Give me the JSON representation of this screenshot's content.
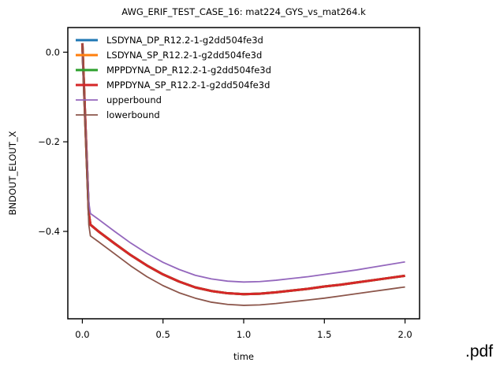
{
  "pdf_label": ".pdf",
  "chart_data": {
    "type": "line",
    "title": "AWG_ERIF_TEST_CASE_16: mat224_GYS_vs_mat264.k",
    "xlabel": "time",
    "ylabel": "BNDOUT_ELOUT_X",
    "xlim": [
      -0.09,
      2.09
    ],
    "ylim": [
      -0.595,
      0.055
    ],
    "xticks": [
      0.0,
      0.5,
      1.0,
      1.5,
      2.0
    ],
    "xtick_labels": [
      "0.0",
      "0.5",
      "1.0",
      "1.5",
      "2.0"
    ],
    "yticks": [
      0.0,
      -0.2,
      -0.4
    ],
    "ytick_labels": [
      "0.0",
      "−0.2",
      "−0.4"
    ],
    "grid": false,
    "legend_position": "top-left",
    "series": [
      {
        "name": "LSDYNA_DP_R12.2-1-g2dd504fe3d",
        "color": "#1f77b4",
        "x": [
          0.0,
          0.04,
          0.05,
          0.1,
          0.2,
          0.3,
          0.4,
          0.5,
          0.6,
          0.7,
          0.8,
          0.9,
          1.0,
          1.1,
          1.2,
          1.3,
          1.4,
          1.5,
          1.6,
          1.7,
          1.8,
          1.9,
          2.0
        ],
        "y": [
          0.02,
          -0.36,
          -0.385,
          -0.4,
          -0.427,
          -0.453,
          -0.476,
          -0.496,
          -0.512,
          -0.525,
          -0.533,
          -0.538,
          -0.54,
          -0.539,
          -0.536,
          -0.532,
          -0.528,
          -0.523,
          -0.519,
          -0.514,
          -0.509,
          -0.504,
          -0.499
        ]
      },
      {
        "name": "LSDYNA_SP_R12.2-1-g2dd504fe3d",
        "color": "#ff7f0e",
        "x": [
          0.0,
          0.04,
          0.05,
          0.1,
          0.2,
          0.3,
          0.4,
          0.5,
          0.6,
          0.7,
          0.8,
          0.9,
          1.0,
          1.1,
          1.2,
          1.3,
          1.4,
          1.5,
          1.6,
          1.7,
          1.8,
          1.9,
          2.0
        ],
        "y": [
          0.02,
          -0.36,
          -0.385,
          -0.4,
          -0.427,
          -0.453,
          -0.476,
          -0.496,
          -0.512,
          -0.525,
          -0.533,
          -0.538,
          -0.54,
          -0.539,
          -0.536,
          -0.532,
          -0.528,
          -0.523,
          -0.519,
          -0.514,
          -0.509,
          -0.504,
          -0.499
        ]
      },
      {
        "name": "MPPDYNA_DP_R12.2-1-g2dd504fe3d",
        "color": "#2ca02c",
        "x": [
          0.0,
          0.04,
          0.05,
          0.1,
          0.2,
          0.3,
          0.4,
          0.5,
          0.6,
          0.7,
          0.8,
          0.9,
          1.0,
          1.1,
          1.2,
          1.3,
          1.4,
          1.5,
          1.6,
          1.7,
          1.8,
          1.9,
          2.0
        ],
        "y": [
          0.02,
          -0.36,
          -0.385,
          -0.4,
          -0.427,
          -0.453,
          -0.476,
          -0.496,
          -0.512,
          -0.525,
          -0.533,
          -0.538,
          -0.54,
          -0.539,
          -0.536,
          -0.532,
          -0.528,
          -0.523,
          -0.519,
          -0.514,
          -0.509,
          -0.504,
          -0.499
        ]
      },
      {
        "name": "MPPDYNA_SP_R12.2-1-g2dd504fe3d",
        "color": "#d62728",
        "x": [
          0.0,
          0.04,
          0.05,
          0.1,
          0.2,
          0.3,
          0.4,
          0.5,
          0.6,
          0.7,
          0.8,
          0.9,
          1.0,
          1.1,
          1.2,
          1.3,
          1.4,
          1.5,
          1.6,
          1.7,
          1.8,
          1.9,
          2.0
        ],
        "y": [
          0.02,
          -0.36,
          -0.385,
          -0.4,
          -0.427,
          -0.453,
          -0.476,
          -0.496,
          -0.512,
          -0.525,
          -0.533,
          -0.538,
          -0.54,
          -0.539,
          -0.536,
          -0.532,
          -0.528,
          -0.523,
          -0.519,
          -0.514,
          -0.509,
          -0.504,
          -0.499
        ]
      },
      {
        "name": "upperbound",
        "color": "#9467bd",
        "x": [
          0.0,
          0.04,
          0.05,
          0.1,
          0.2,
          0.3,
          0.4,
          0.5,
          0.6,
          0.7,
          0.8,
          0.9,
          1.0,
          1.1,
          1.2,
          1.3,
          1.4,
          1.5,
          1.6,
          1.7,
          1.8,
          1.9,
          2.0
        ],
        "y": [
          0.0,
          -0.335,
          -0.36,
          -0.373,
          -0.4,
          -0.426,
          -0.449,
          -0.469,
          -0.485,
          -0.498,
          -0.506,
          -0.511,
          -0.513,
          -0.512,
          -0.509,
          -0.505,
          -0.501,
          -0.496,
          -0.491,
          -0.486,
          -0.48,
          -0.474,
          -0.468
        ]
      },
      {
        "name": "lowerbound",
        "color": "#8c564b",
        "x": [
          0.0,
          0.04,
          0.05,
          0.1,
          0.2,
          0.3,
          0.4,
          0.5,
          0.6,
          0.7,
          0.8,
          0.9,
          1.0,
          1.1,
          1.2,
          1.3,
          1.4,
          1.5,
          1.6,
          1.7,
          1.8,
          1.9,
          2.0
        ],
        "y": [
          0.02,
          -0.385,
          -0.41,
          -0.423,
          -0.45,
          -0.477,
          -0.501,
          -0.521,
          -0.537,
          -0.549,
          -0.558,
          -0.563,
          -0.565,
          -0.564,
          -0.561,
          -0.557,
          -0.553,
          -0.549,
          -0.544,
          -0.539,
          -0.534,
          -0.529,
          -0.524
        ]
      }
    ]
  }
}
